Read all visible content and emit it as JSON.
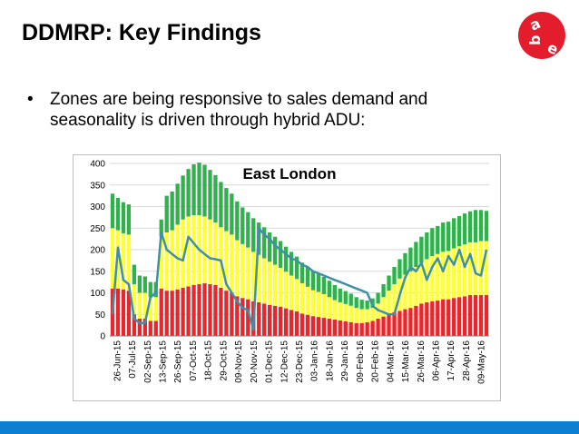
{
  "slide": {
    "title": "DDMRP: Key Findings",
    "bullet_symbol": "•",
    "bullet_text": "Zones are being responsive to sales demand and seasonality is driven through hybrid ADU:",
    "logo_letters": [
      "a",
      "b",
      "e"
    ],
    "colors": {
      "logo_red": "#e31d2c",
      "footer_blue": "#0d7fd1"
    }
  },
  "chart_data": {
    "type": "bar",
    "title": "East London",
    "ylim": [
      0,
      400
    ],
    "yticks": [
      0,
      50,
      100,
      150,
      200,
      250,
      300,
      350,
      400
    ],
    "grid": true,
    "legend": "none",
    "x_tick_labels": [
      "26-Jun-15",
      "07-Jul-15",
      "02-Sep-15",
      "13-Sep-15",
      "26-Sep-15",
      "07-Oct-15",
      "18-Oct-15",
      "29-Oct-15",
      "09-Nov-15",
      "20-Nov-15",
      "01-Dec-15",
      "12-Dec-15",
      "23-Dec-15",
      "03-Jan-16",
      "18-Jan-16",
      "29-Jan-16",
      "09-Feb-16",
      "20-Feb-16",
      "04-Mar-16",
      "15-Mar-16",
      "26-Mar-16",
      "06-Apr-16",
      "17-Apr-16",
      "28-Apr-16",
      "09-May-16"
    ],
    "colors": {
      "red_zone": "#e8262b",
      "yellow_zone": "#ffff33",
      "green_zone": "#2db34a",
      "on_hand_line": "#3f8fa8",
      "position_line": "#8a8a52"
    },
    "series": [
      {
        "values": [
          110,
          110,
          108,
          105,
          50,
          40,
          40,
          35,
          35,
          110,
          105,
          105,
          108,
          112,
          115,
          118,
          120,
          122,
          120,
          118,
          112,
          105,
          100,
          92,
          88,
          85,
          80,
          78,
          75,
          72,
          70,
          68,
          64,
          60,
          57,
          52,
          49,
          46,
          44,
          42,
          40,
          38,
          36,
          34,
          32,
          30,
          30,
          32,
          35,
          40,
          45,
          50,
          55,
          58,
          62,
          65,
          70,
          75,
          78,
          80,
          82,
          85,
          85,
          88,
          90,
          92,
          95,
          95,
          95,
          95
        ]
      },
      {
        "values": [
          140,
          135,
          130,
          130,
          70,
          60,
          60,
          55,
          55,
          120,
          135,
          140,
          150,
          158,
          162,
          162,
          160,
          155,
          150,
          145,
          140,
          138,
          135,
          130,
          125,
          120,
          115,
          110,
          105,
          100,
          95,
          90,
          85,
          80,
          75,
          70,
          65,
          60,
          58,
          55,
          50,
          45,
          42,
          40,
          38,
          35,
          32,
          30,
          30,
          35,
          45,
          55,
          65,
          75,
          80,
          85,
          90,
          95,
          100,
          105,
          108,
          110,
          112,
          115,
          118,
          120,
          122,
          122,
          125,
          125
        ]
      },
      {
        "values": [
          80,
          75,
          72,
          70,
          45,
          40,
          38,
          35,
          35,
          40,
          85,
          90,
          95,
          102,
          110,
          118,
          122,
          120,
          115,
          110,
          105,
          100,
          95,
          90,
          85,
          82,
          78,
          75,
          72,
          68,
          65,
          62,
          58,
          55,
          52,
          48,
          46,
          44,
          42,
          40,
          38,
          35,
          32,
          30,
          28,
          25,
          22,
          20,
          22,
          25,
          30,
          35,
          40,
          45,
          50,
          55,
          58,
          60,
          62,
          65,
          65,
          68,
          68,
          70,
          70,
          72,
          72,
          75,
          72,
          70
        ]
      },
      {
        "values": [
          50,
          205,
          130,
          120,
          40,
          30,
          30,
          90,
          100,
          240,
          200,
          190,
          180,
          175,
          230,
          215,
          200,
          190,
          180,
          178,
          175,
          120,
          100,
          80,
          65,
          60,
          15,
          250,
          235,
          225,
          210,
          200,
          190,
          180,
          175,
          165,
          160,
          150,
          145,
          140,
          135,
          130,
          125,
          120,
          115,
          110,
          105,
          100,
          70,
          60,
          55,
          50,
          50,
          95,
          135,
          160,
          150,
          170,
          130,
          160,
          180,
          150,
          185,
          165,
          200,
          160,
          190,
          145,
          140,
          200
        ]
      }
    ]
  }
}
